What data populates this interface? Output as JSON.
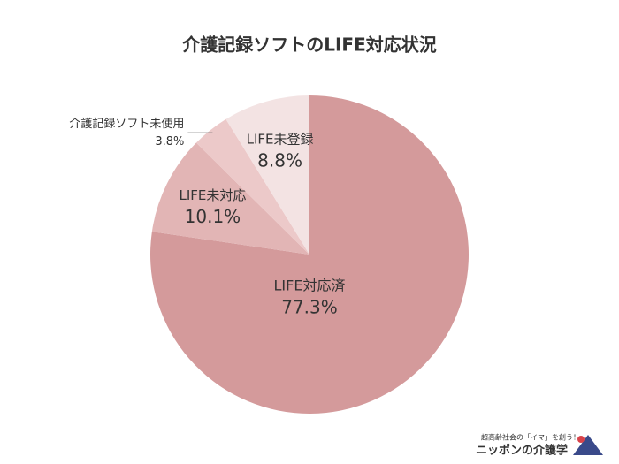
{
  "chart_data": {
    "type": "pie",
    "title": "介護記録ソフトのLIFE対応状況",
    "categories": [
      "LIFE対応済",
      "LIFE未対応",
      "介護記録ソフト未使用",
      "LIFE未登録"
    ],
    "values": [
      77.3,
      10.1,
      3.8,
      8.8
    ],
    "value_labels": [
      "77.3%",
      "10.1%",
      "3.8%",
      "8.8%"
    ],
    "colors": [
      "#d49a9b",
      "#e2b5b5",
      "#ecc9c9",
      "#f3e3e3"
    ],
    "logo_tagline": "超高齢社会の「イマ」を創う！",
    "logo_name": "ニッポンの介護学"
  }
}
